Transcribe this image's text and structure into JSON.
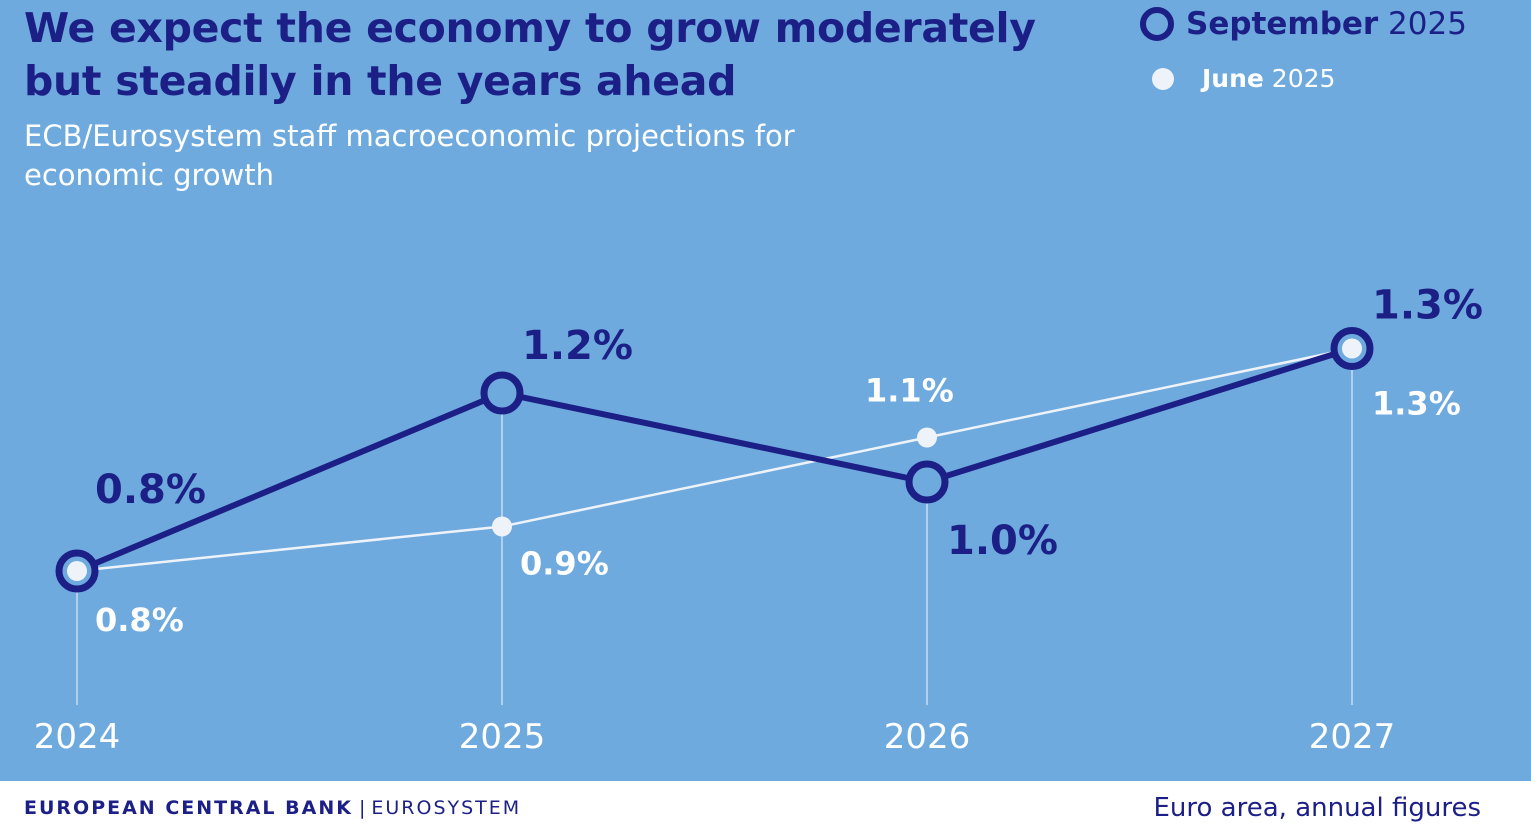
{
  "header": {
    "title": "We expect the economy to grow moderately but steadily in the years ahead",
    "subtitle": "ECB/Eurosystem staff macroeconomic projections for economic growth"
  },
  "legend": {
    "september": {
      "strong": "September",
      "rest": " 2025"
    },
    "june": {
      "strong": "June",
      "rest": " 2025"
    }
  },
  "chart_data": {
    "type": "line",
    "title": "We expect the economy to grow moderately but steadily in the years ahead",
    "subtitle": "ECB/Eurosystem staff macroeconomic projections for economic growth",
    "categories": [
      "2024",
      "2025",
      "2026",
      "2027"
    ],
    "series": [
      {
        "name": "September 2025",
        "values": [
          0.8,
          1.2,
          1.0,
          1.3
        ],
        "labels": [
          "0.8%",
          "1.2%",
          "1.0%",
          "1.3%"
        ],
        "color": "#1c1f86"
      },
      {
        "name": "June 2025",
        "values": [
          0.8,
          0.9,
          1.1,
          1.3
        ],
        "labels": [
          "0.8%",
          "0.9%",
          "1.1%",
          "1.3%"
        ],
        "color": "#eef3fa"
      }
    ],
    "ylim": [
      0.4,
      1.5
    ],
    "xlabel": "",
    "ylabel": "",
    "grid": false,
    "legend": "top-right"
  },
  "colors": {
    "background": "#6eaade",
    "september": "#1c1f86",
    "june": "#eef3fa",
    "axis_text": "#ffffff"
  },
  "footer": {
    "org": "EUROPEAN CENTRAL BANK",
    "separator": "|",
    "system": "EUROSYSTEM",
    "note": "Euro area, annual figures"
  }
}
